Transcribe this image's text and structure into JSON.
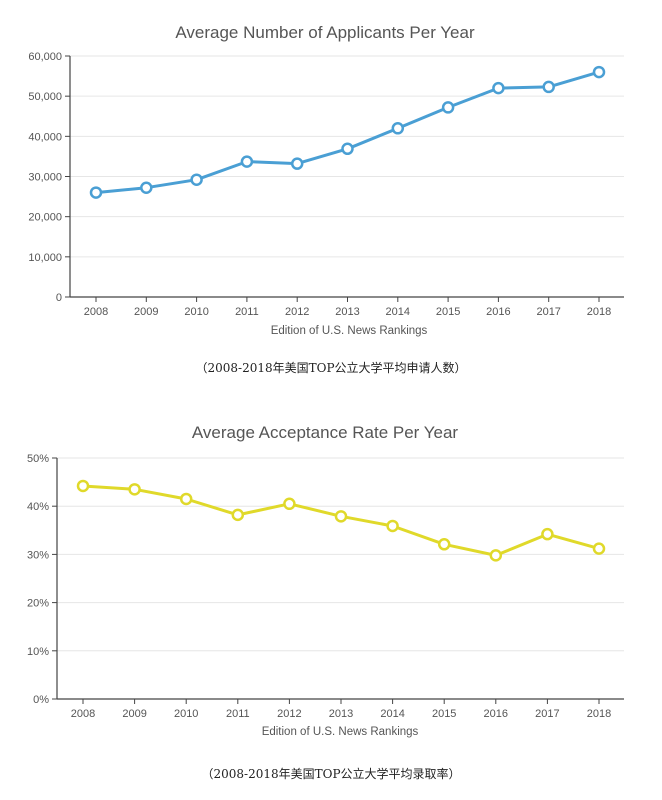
{
  "chart_data": [
    {
      "type": "line",
      "title": "Average Number of Applicants Per Year",
      "xlabel": "Edition of U.S. News Rankings",
      "ylabel": "",
      "categories": [
        "2008",
        "2009",
        "2010",
        "2011",
        "2012",
        "2013",
        "2014",
        "2015",
        "2016",
        "2017",
        "2018"
      ],
      "series": [
        {
          "values": [
            26000,
            27200,
            29200,
            33700,
            33200,
            36900,
            42000,
            47200,
            52000,
            52300,
            56000
          ]
        }
      ],
      "ylim": [
        0,
        60000
      ],
      "yticks": [
        {
          "value": 0,
          "label": "0"
        },
        {
          "value": 10000,
          "label": "10,000"
        },
        {
          "value": 20000,
          "label": "20,000"
        },
        {
          "value": 30000,
          "label": "30,000"
        },
        {
          "value": 40000,
          "label": "40,000"
        },
        {
          "value": 50000,
          "label": "50,000"
        },
        {
          "value": 60000,
          "label": "60,000"
        }
      ],
      "grid": true,
      "color": "#4a9fd4"
    },
    {
      "type": "line",
      "title": "Average Acceptance Rate Per Year",
      "xlabel": "Edition of U.S. News Rankings",
      "ylabel": "",
      "categories": [
        "2008",
        "2009",
        "2010",
        "2011",
        "2012",
        "2013",
        "2014",
        "2015",
        "2016",
        "2017",
        "2018"
      ],
      "series": [
        {
          "values": [
            44.2,
            43.5,
            41.5,
            38.2,
            40.5,
            37.9,
            35.9,
            32.1,
            29.8,
            34.2,
            31.2
          ]
        }
      ],
      "ylim": [
        0,
        50
      ],
      "yticks": [
        {
          "value": 0,
          "label": "0%"
        },
        {
          "value": 10,
          "label": "10%"
        },
        {
          "value": 20,
          "label": "20%"
        },
        {
          "value": 30,
          "label": "30%"
        },
        {
          "value": 40,
          "label": "40%"
        },
        {
          "value": 50,
          "label": "50%"
        }
      ],
      "grid": true,
      "color": "#e0d92a"
    }
  ],
  "captions": {
    "chart1": "（2008-2018年美国TOP公立大学平均申请人数）",
    "chart2": "（2008-2018年美国TOP公立大学平均录取率）"
  }
}
